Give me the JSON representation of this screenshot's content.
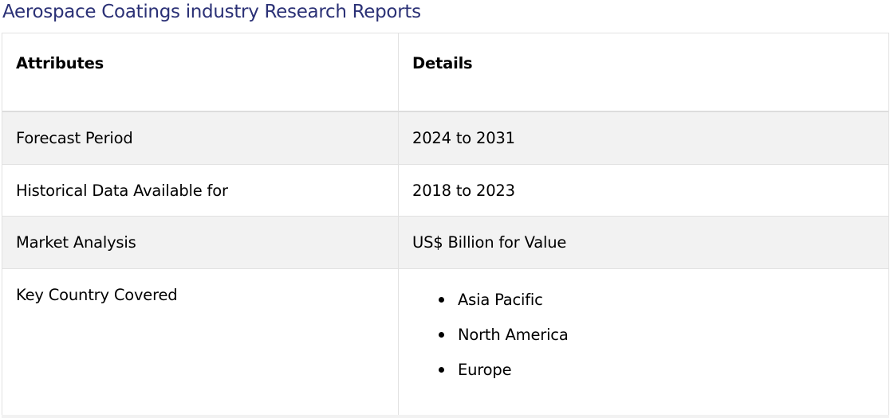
{
  "title": "Aerospace Coatings industry Research Reports",
  "table": {
    "headers": [
      "Attributes",
      "Details"
    ],
    "rows": [
      {
        "attribute": "Forecast Period",
        "detail": "2024 to 2031"
      },
      {
        "attribute": "Historical Data Available for",
        "detail": "2018 to 2023"
      },
      {
        "attribute": "Market Analysis",
        "detail": "US$ Billion for Value"
      },
      {
        "attribute": "Key Country Covered",
        "list": [
          "Asia Pacific",
          "North America",
          "Europe"
        ]
      }
    ]
  },
  "colors": {
    "title": "#2b3176",
    "stripe": "#f2f2f2",
    "border": "#e2e2e2"
  }
}
